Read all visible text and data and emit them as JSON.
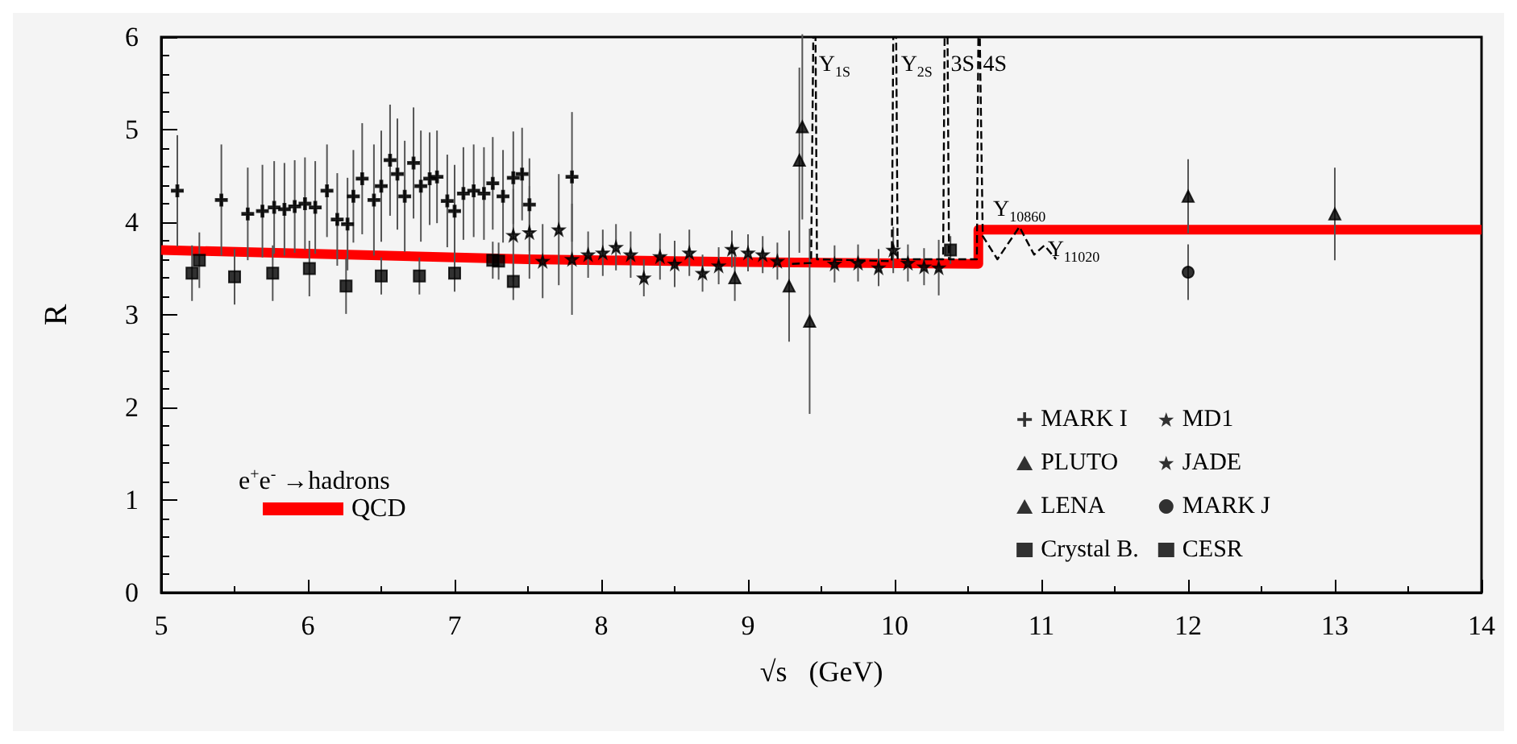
{
  "chart_data": {
    "type": "scatter",
    "xlabel": "√s   (GeV)",
    "ylabel": "R",
    "xlim": [
      5,
      14
    ],
    "xticks": [
      5,
      6,
      7,
      8,
      9,
      10,
      11,
      12,
      13,
      14
    ],
    "ylim": [
      0,
      6
    ],
    "yticks": [
      0,
      1,
      2,
      3,
      4,
      5,
      6
    ],
    "grid": false,
    "legend": "bottom right",
    "annotations": [
      {
        "text": "Υ$_{1S}$",
        "x": 9.46,
        "y": 5.7
      },
      {
        "text": "Υ$_{2S}$",
        "x": 10.02,
        "y": 5.7
      },
      {
        "text": "3S",
        "x": 10.36,
        "y": 5.7
      },
      {
        "text": "4S",
        "x": 10.58,
        "y": 5.7
      },
      {
        "text": "Υ$_{10860}$",
        "x": 10.85,
        "y": 3.95
      },
      {
        "text": "Υ$_{11020}$",
        "x": 11.02,
        "y": 3.7
      },
      "e$^{+}$e$^{-}$ →hadrons"
    ],
    "series": [
      {
        "name": "MARK I",
        "color": "#000000",
        "marker": "cross",
        "x": [
          5.11,
          5.41,
          5.59,
          5.69,
          5.77,
          5.84,
          5.91,
          5.98,
          6.05,
          6.13,
          6.2,
          6.27,
          6.31,
          6.37,
          6.45,
          6.5,
          6.56,
          6.61,
          6.66,
          6.72,
          6.77,
          6.83,
          6.88,
          6.95,
          7.0,
          7.06,
          7.13,
          7.2,
          7.26,
          7.33,
          7.4,
          7.46,
          7.51,
          7.8
        ],
        "values": [
          4.34,
          4.24,
          4.09,
          4.12,
          4.16,
          4.14,
          4.17,
          4.2,
          4.16,
          4.34,
          4.03,
          3.98,
          4.28,
          4.47,
          4.24,
          4.39,
          4.67,
          4.52,
          4.28,
          4.64,
          4.39,
          4.47,
          4.49,
          4.23,
          4.12,
          4.31,
          4.34,
          4.31,
          4.42,
          4.28,
          4.48,
          4.52,
          4.19,
          4.49
        ],
        "errors": [
          0.6,
          0.6,
          0.5,
          0.5,
          0.5,
          0.5,
          0.5,
          0.5,
          0.5,
          0.5,
          0.5,
          0.5,
          0.5,
          0.6,
          0.6,
          0.6,
          0.6,
          0.6,
          0.6,
          0.6,
          0.6,
          0.5,
          0.5,
          0.5,
          0.5,
          0.5,
          0.5,
          0.5,
          0.5,
          0.5,
          0.5,
          0.5,
          0.5,
          0.7
        ]
      },
      {
        "name": "PLUTO",
        "color": "#000000",
        "marker": "triangle",
        "x": [
          9.35,
          9.37,
          9.42,
          12.0,
          13.0
        ],
        "values": [
          4.67,
          5.03,
          2.93,
          4.28,
          4.09
        ],
        "errors": [
          1.0,
          1.0,
          1.0,
          0.4,
          0.5
        ]
      },
      {
        "name": "LENA",
        "color": "#000000",
        "marker": "triangle",
        "x": [
          8.91,
          9.28
        ],
        "values": [
          3.4,
          3.31
        ],
        "errors": [
          0.25,
          0.6
        ]
      },
      {
        "name": "Crystal B.",
        "color": "#000000",
        "marker": "square",
        "x": [
          5.21,
          5.26,
          5.5,
          5.76,
          6.01,
          6.26,
          6.5,
          6.76,
          7.0,
          7.26,
          7.3,
          7.4
        ],
        "values": [
          3.45,
          3.59,
          3.41,
          3.45,
          3.5,
          3.31,
          3.42,
          3.42,
          3.45,
          3.59,
          3.58,
          3.36
        ],
        "errors": [
          0.3,
          0.3,
          0.3,
          0.3,
          0.3,
          0.3,
          0.2,
          0.2,
          0.2,
          0.2,
          0.2,
          0.2
        ]
      },
      {
        "name": "MD1",
        "color": "#000000",
        "marker": "star",
        "x": [
          7.91,
          8.01,
          8.1,
          8.2,
          8.29,
          8.4,
          8.5,
          8.6,
          8.69,
          8.8,
          8.89,
          9.0,
          9.1,
          9.2,
          9.59,
          9.75,
          9.89,
          9.99,
          10.09,
          10.2,
          10.3
        ],
        "values": [
          3.65,
          3.67,
          3.73,
          3.65,
          3.4,
          3.63,
          3.55,
          3.67,
          3.45,
          3.53,
          3.71,
          3.67,
          3.65,
          3.58,
          3.55,
          3.56,
          3.51,
          3.7,
          3.56,
          3.52,
          3.51
        ],
        "errors": [
          0.25,
          0.25,
          0.25,
          0.25,
          0.2,
          0.25,
          0.25,
          0.25,
          0.2,
          0.2,
          0.2,
          0.2,
          0.2,
          0.2,
          0.2,
          0.2,
          0.2,
          0.25,
          0.2,
          0.2,
          0.3
        ]
      },
      {
        "name": "JADE",
        "color": "#000000",
        "marker": "star",
        "x": [
          7.4,
          7.51,
          7.6,
          7.71,
          7.8
        ],
        "values": [
          3.86,
          3.89,
          3.58,
          3.92,
          3.6
        ],
        "errors": [
          0.5,
          0.5,
          0.4,
          0.6,
          0.6
        ]
      },
      {
        "name": "MARK J",
        "color": "#000000",
        "marker": "circle",
        "x": [
          12.0
        ],
        "values": [
          3.46
        ],
        "errors": [
          0.3
        ]
      },
      {
        "name": "CESR",
        "color": "#000000",
        "marker": "square",
        "x": [
          10.38
        ],
        "values": [
          3.7
        ],
        "errors": [
          0.15
        ]
      },
      {
        "name": "QCD",
        "type": "line",
        "color": "#ff0000",
        "marker": "none",
        "x": [
          5,
          7.5,
          9,
          10.57,
          10.57,
          14
        ],
        "values": [
          3.7,
          3.6,
          3.57,
          3.55,
          3.92,
          3.92
        ]
      },
      {
        "type": "line",
        "color": "#000000",
        "marker": "none",
        "line_style": "dashed",
        "x": [
          9.3,
          9.43,
          9.445,
          9.46,
          9.47,
          9.98,
          9.99,
          10.01,
          10.02,
          10.33,
          10.34,
          10.36,
          10.37,
          10.56,
          10.57,
          10.58,
          10.6,
          10.7,
          10.85,
          10.95,
          11.02,
          11.1
        ],
        "values": [
          3.55,
          3.56,
          6,
          6,
          3.6,
          3.58,
          6,
          6,
          3.6,
          3.6,
          6,
          6,
          3.6,
          3.6,
          6,
          6,
          3.85,
          3.6,
          3.95,
          3.65,
          3.75,
          3.6
        ]
      }
    ]
  }
}
